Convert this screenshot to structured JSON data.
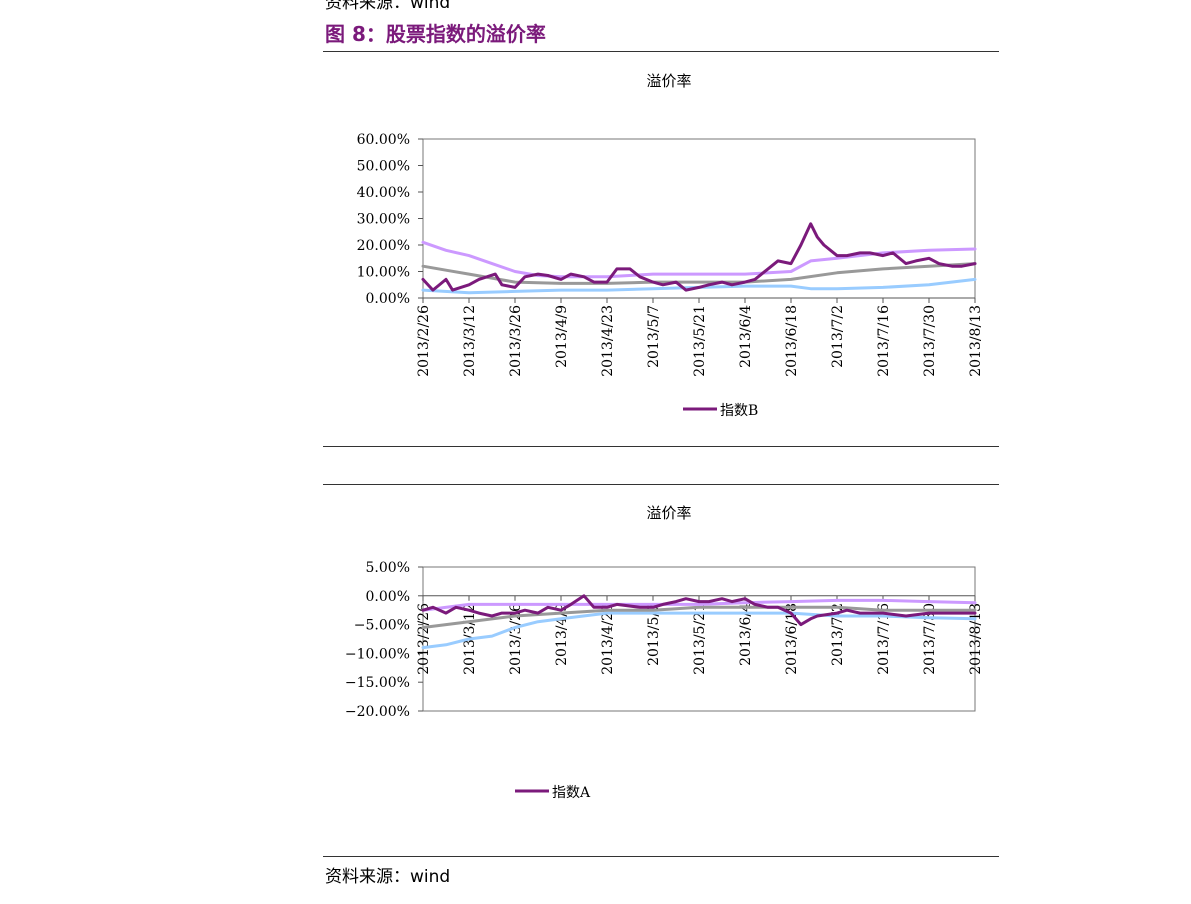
{
  "header": {
    "source_prefix": "资料来源：",
    "source_name": "wind",
    "figure_title": "图 8：股票指数的溢价率"
  },
  "footer": {
    "source_prefix": "资料来源：",
    "source_name": "wind"
  },
  "colors": {
    "title": "#7b1a7b",
    "index_purple": "#7b1a7b",
    "lavender": "#cc99ff",
    "gray": "#999999",
    "light_blue": "#99ccff"
  },
  "chart_data": [
    {
      "type": "line",
      "title": "溢价率",
      "xlabel": "",
      "ylabel": "",
      "ylim": [
        0,
        60
      ],
      "yticks": [
        "60.00%",
        "50.00%",
        "40.00%",
        "30.00%",
        "20.00%",
        "10.00%",
        "0.00%"
      ],
      "ytick_values": [
        60,
        50,
        40,
        30,
        20,
        10,
        0
      ],
      "xticks": [
        "2013/2/26",
        "2013/3/12",
        "2013/3/26",
        "2013/4/9",
        "2013/4/23",
        "2013/5/7",
        "2013/5/21",
        "2013/6/4",
        "2013/6/18",
        "2013/7/2",
        "2013/7/16",
        "2013/7/30",
        "2013/8/13"
      ],
      "grid": false,
      "legend": "bottom",
      "series": [
        {
          "name": "指数B",
          "color": "#7b1a7b",
          "points": [
            [
              "2013/2/26",
              7
            ],
            [
              "2013/3/1",
              3
            ],
            [
              "2013/3/5",
              7
            ],
            [
              "2013/3/7",
              3
            ],
            [
              "2013/3/12",
              5
            ],
            [
              "2013/3/15",
              7
            ],
            [
              "2013/3/20",
              9
            ],
            [
              "2013/3/22",
              5
            ],
            [
              "2013/3/26",
              4
            ],
            [
              "2013/3/29",
              8
            ],
            [
              "2013/4/2",
              9
            ],
            [
              "2013/4/5",
              8.5
            ],
            [
              "2013/4/9",
              7
            ],
            [
              "2013/4/12",
              9
            ],
            [
              "2013/4/16",
              8
            ],
            [
              "2013/4/19",
              6
            ],
            [
              "2013/4/23",
              6
            ],
            [
              "2013/4/26",
              11
            ],
            [
              "2013/4/30",
              11
            ],
            [
              "2013/5/3",
              8
            ],
            [
              "2013/5/7",
              6
            ],
            [
              "2013/5/10",
              5
            ],
            [
              "2013/5/14",
              6
            ],
            [
              "2013/5/17",
              3
            ],
            [
              "2013/5/21",
              4
            ],
            [
              "2013/5/24",
              5
            ],
            [
              "2013/5/28",
              6
            ],
            [
              "2013/5/31",
              5
            ],
            [
              "2013/6/4",
              6
            ],
            [
              "2013/6/7",
              7
            ],
            [
              "2013/6/11",
              11
            ],
            [
              "2013/6/14",
              14
            ],
            [
              "2013/6/18",
              13
            ],
            [
              "2013/6/21",
              20
            ],
            [
              "2013/6/24",
              28
            ],
            [
              "2013/6/26",
              23
            ],
            [
              "2013/6/28",
              20
            ],
            [
              "2013/7/2",
              16
            ],
            [
              "2013/7/5",
              16
            ],
            [
              "2013/7/9",
              17
            ],
            [
              "2013/7/12",
              17
            ],
            [
              "2013/7/16",
              16
            ],
            [
              "2013/7/19",
              17
            ],
            [
              "2013/7/23",
              13
            ],
            [
              "2013/7/26",
              14
            ],
            [
              "2013/7/30",
              15
            ],
            [
              "2013/8/2",
              13
            ],
            [
              "2013/8/6",
              12
            ],
            [
              "2013/8/9",
              12
            ],
            [
              "2013/8/13",
              13
            ]
          ]
        },
        {
          "color": "#cc99ff",
          "points": [
            [
              "2013/2/26",
              21
            ],
            [
              "2013/3/5",
              18
            ],
            [
              "2013/3/12",
              16
            ],
            [
              "2013/3/19",
              13
            ],
            [
              "2013/3/26",
              10
            ],
            [
              "2013/4/2",
              8.5
            ],
            [
              "2013/4/9",
              8
            ],
            [
              "2013/4/23",
              8
            ],
            [
              "2013/5/7",
              9
            ],
            [
              "2013/5/21",
              9
            ],
            [
              "2013/6/4",
              9
            ],
            [
              "2013/6/18",
              10
            ],
            [
              "2013/6/24",
              14
            ],
            [
              "2013/7/2",
              15
            ],
            [
              "2013/7/16",
              17
            ],
            [
              "2013/7/30",
              18
            ],
            [
              "2013/8/13",
              18.5
            ]
          ]
        },
        {
          "color": "#999999",
          "points": [
            [
              "2013/2/26",
              12
            ],
            [
              "2013/3/5",
              10.5
            ],
            [
              "2013/3/12",
              9
            ],
            [
              "2013/3/26",
              6
            ],
            [
              "2013/4/9",
              5.5
            ],
            [
              "2013/4/23",
              5.5
            ],
            [
              "2013/5/7",
              6
            ],
            [
              "2013/5/21",
              6
            ],
            [
              "2013/6/4",
              6
            ],
            [
              "2013/6/18",
              7
            ],
            [
              "2013/7/2",
              9.5
            ],
            [
              "2013/7/16",
              11
            ],
            [
              "2013/7/30",
              12
            ],
            [
              "2013/8/13",
              13
            ]
          ]
        },
        {
          "color": "#99ccff",
          "points": [
            [
              "2013/2/26",
              3
            ],
            [
              "2013/3/12",
              2
            ],
            [
              "2013/3/26",
              2.5
            ],
            [
              "2013/4/9",
              3
            ],
            [
              "2013/4/23",
              3
            ],
            [
              "2013/5/7",
              3.5
            ],
            [
              "2013/5/21",
              4
            ],
            [
              "2013/6/4",
              4.5
            ],
            [
              "2013/6/18",
              4.5
            ],
            [
              "2013/6/24",
              3.5
            ],
            [
              "2013/7/2",
              3.5
            ],
            [
              "2013/7/16",
              4
            ],
            [
              "2013/7/30",
              5
            ],
            [
              "2013/8/13",
              7
            ]
          ]
        }
      ]
    },
    {
      "type": "line",
      "title": "溢价率",
      "xlabel": "",
      "ylabel": "",
      "ylim": [
        -20,
        5
      ],
      "yticks": [
        "5.00%",
        "0.00%",
        "−5.00%",
        "−10.00%",
        "−15.00%",
        "−20.00%"
      ],
      "ytick_values": [
        5,
        0,
        -5,
        -10,
        -15,
        -20
      ],
      "xticks": [
        "2013/2/26",
        "2013/3/12",
        "2013/3/26",
        "2013/4/9",
        "2013/4/23",
        "2013/5/7",
        "2013/5/21",
        "2013/6/4",
        "2013/6/18",
        "2013/7/2",
        "2013/7/16",
        "2013/7/30",
        "2013/8/13"
      ],
      "grid": false,
      "legend": "bottom-left",
      "series": [
        {
          "name": "指数A",
          "color": "#7b1a7b",
          "points": [
            [
              "2013/2/26",
              -2.5
            ],
            [
              "2013/3/1",
              -2
            ],
            [
              "2013/3/5",
              -3
            ],
            [
              "2013/3/8",
              -2
            ],
            [
              "2013/3/12",
              -2.5
            ],
            [
              "2013/3/15",
              -3
            ],
            [
              "2013/3/19",
              -3.5
            ],
            [
              "2013/3/22",
              -3
            ],
            [
              "2013/3/26",
              -3
            ],
            [
              "2013/3/29",
              -2.5
            ],
            [
              "2013/4/2",
              -3
            ],
            [
              "2013/4/5",
              -2
            ],
            [
              "2013/4/9",
              -2.5
            ],
            [
              "2013/4/12",
              -1.5
            ],
            [
              "2013/4/16",
              0
            ],
            [
              "2013/4/19",
              -2
            ],
            [
              "2013/4/23",
              -2
            ],
            [
              "2013/4/26",
              -1.5
            ],
            [
              "2013/5/3",
              -2
            ],
            [
              "2013/5/7",
              -2
            ],
            [
              "2013/5/10",
              -1.5
            ],
            [
              "2013/5/14",
              -1
            ],
            [
              "2013/5/17",
              -0.5
            ],
            [
              "2013/5/21",
              -1
            ],
            [
              "2013/5/24",
              -1
            ],
            [
              "2013/5/28",
              -0.5
            ],
            [
              "2013/5/31",
              -1
            ],
            [
              "2013/6/4",
              -0.5
            ],
            [
              "2013/6/7",
              -1.5
            ],
            [
              "2013/6/11",
              -2
            ],
            [
              "2013/6/14",
              -2
            ],
            [
              "2013/6/18",
              -3
            ],
            [
              "2013/6/21",
              -5
            ],
            [
              "2013/6/24",
              -4
            ],
            [
              "2013/6/26",
              -3.5
            ],
            [
              "2013/7/2",
              -3
            ],
            [
              "2013/7/5",
              -2.5
            ],
            [
              "2013/7/9",
              -3
            ],
            [
              "2013/7/16",
              -3
            ],
            [
              "2013/7/23",
              -3.5
            ],
            [
              "2013/7/30",
              -3
            ],
            [
              "2013/8/6",
              -3
            ],
            [
              "2013/8/13",
              -3
            ]
          ]
        },
        {
          "color": "#cc99ff",
          "points": [
            [
              "2013/2/26",
              -2.5
            ],
            [
              "2013/3/12",
              -1.5
            ],
            [
              "2013/3/26",
              -1.5
            ],
            [
              "2013/4/9",
              -1.5
            ],
            [
              "2013/4/23",
              -1.5
            ],
            [
              "2013/5/7",
              -1.5
            ],
            [
              "2013/5/21",
              -1.5
            ],
            [
              "2013/6/4",
              -1.2
            ],
            [
              "2013/6/18",
              -1
            ],
            [
              "2013/7/2",
              -0.8
            ],
            [
              "2013/7/16",
              -0.8
            ],
            [
              "2013/7/30",
              -1
            ],
            [
              "2013/8/13",
              -1.2
            ]
          ]
        },
        {
          "color": "#999999",
          "points": [
            [
              "2013/2/26",
              -5.5
            ],
            [
              "2013/3/12",
              -4.5
            ],
            [
              "2013/3/26",
              -3.5
            ],
            [
              "2013/4/9",
              -3
            ],
            [
              "2013/4/23",
              -2.5
            ],
            [
              "2013/5/7",
              -2.5
            ],
            [
              "2013/5/21",
              -2
            ],
            [
              "2013/6/4",
              -2
            ],
            [
              "2013/6/18",
              -2
            ],
            [
              "2013/7/2",
              -2
            ],
            [
              "2013/7/16",
              -2.5
            ],
            [
              "2013/7/30",
              -2.5
            ],
            [
              "2013/8/13",
              -2.5
            ]
          ]
        },
        {
          "color": "#99ccff",
          "points": [
            [
              "2013/2/26",
              -9
            ],
            [
              "2013/3/5",
              -8.5
            ],
            [
              "2013/3/12",
              -7.5
            ],
            [
              "2013/3/19",
              -7
            ],
            [
              "2013/3/26",
              -5.5
            ],
            [
              "2013/4/2",
              -4.5
            ],
            [
              "2013/4/9",
              -4
            ],
            [
              "2013/4/23",
              -3
            ],
            [
              "2013/5/7",
              -3
            ],
            [
              "2013/5/21",
              -3
            ],
            [
              "2013/6/4",
              -3
            ],
            [
              "2013/6/18",
              -3
            ],
            [
              "2013/7/2",
              -3.5
            ],
            [
              "2013/7/16",
              -3.5
            ],
            [
              "2013/7/30",
              -3.8
            ],
            [
              "2013/8/13",
              -4
            ]
          ]
        }
      ]
    }
  ]
}
